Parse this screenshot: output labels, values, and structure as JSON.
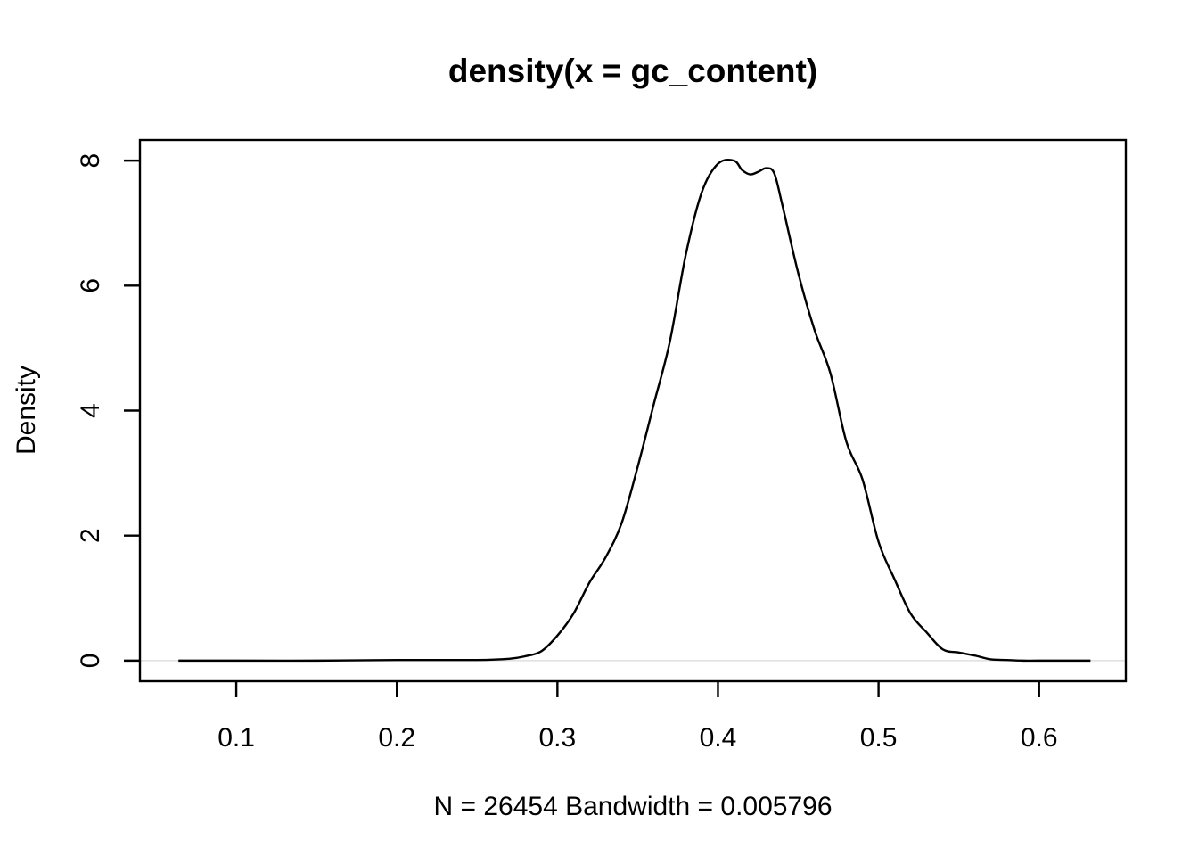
{
  "chart_data": {
    "type": "line",
    "title": "density(x = gc_content)",
    "xlabel": "N = 26454   Bandwidth = 0.005796",
    "ylabel": "Density",
    "xlim": [
      0.04,
      0.654
    ],
    "ylim": [
      -0.33,
      8.33
    ],
    "x_ticks": [
      0.1,
      0.2,
      0.3,
      0.4,
      0.5,
      0.6
    ],
    "x_tick_labels": [
      "0.1",
      "0.2",
      "0.3",
      "0.4",
      "0.5",
      "0.6"
    ],
    "y_ticks": [
      0,
      2,
      4,
      6,
      8
    ],
    "y_tick_labels": [
      "0",
      "2",
      "4",
      "6",
      "8"
    ],
    "grid": false,
    "baseline": 0,
    "colors": {
      "line": "#000000",
      "baseline": "#d9d9d9",
      "axis": "#000000"
    },
    "series": [
      {
        "x": [
          0.064,
          0.1,
          0.15,
          0.2,
          0.25,
          0.27,
          0.28,
          0.29,
          0.3,
          0.31,
          0.32,
          0.33,
          0.34,
          0.35,
          0.36,
          0.37,
          0.38,
          0.39,
          0.4,
          0.41,
          0.415,
          0.42,
          0.425,
          0.43,
          0.435,
          0.44,
          0.45,
          0.46,
          0.47,
          0.48,
          0.49,
          0.5,
          0.51,
          0.52,
          0.53,
          0.54,
          0.55,
          0.56,
          0.57,
          0.58,
          0.59,
          0.6,
          0.632
        ],
        "y": [
          0.0,
          0.0,
          0.0,
          0.01,
          0.01,
          0.03,
          0.07,
          0.15,
          0.4,
          0.75,
          1.25,
          1.65,
          2.2,
          3.1,
          4.1,
          5.1,
          6.5,
          7.5,
          7.95,
          8.0,
          7.85,
          7.78,
          7.82,
          7.88,
          7.8,
          7.3,
          6.2,
          5.3,
          4.6,
          3.5,
          2.9,
          1.9,
          1.3,
          0.75,
          0.45,
          0.18,
          0.13,
          0.08,
          0.02,
          0.01,
          0.0,
          0.0,
          0.0
        ]
      }
    ]
  }
}
